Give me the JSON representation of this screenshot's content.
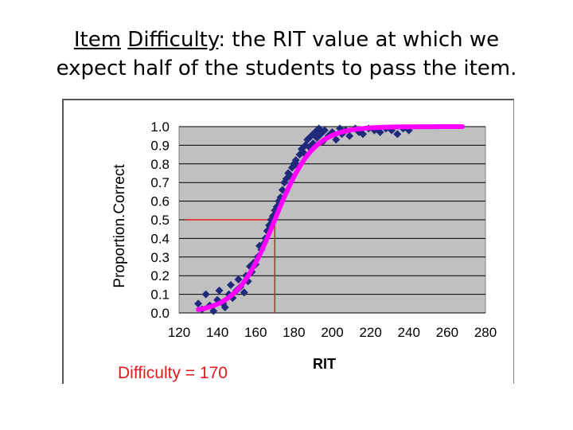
{
  "slide": {
    "title_part1": "Item",
    "title_part2": "Difficulty",
    "title_rest_line1": ": the RIT value at which we",
    "title_line2": "expect half of the students to pass the item."
  },
  "chart_data": {
    "type": "scatter",
    "xlabel": "RIT",
    "ylabel": "Proportion.Correct",
    "xlim": [
      120,
      280
    ],
    "ylim": [
      0.0,
      1.0
    ],
    "x_ticks": [
      "120",
      "140",
      "160",
      "180",
      "200",
      "220",
      "240",
      "260",
      "280"
    ],
    "y_ticks": [
      "0.0",
      "0.1",
      "0.2",
      "0.3",
      "0.4",
      "0.5",
      "0.6",
      "0.7",
      "0.8",
      "0.9",
      "1.0"
    ],
    "grid": "horizontal",
    "background_color": "#c0c0c0",
    "series": [
      {
        "type": "scatter",
        "marker": "diamond",
        "color": "#1f2a7a",
        "points": [
          [
            130,
            0.05
          ],
          [
            132,
            0.02
          ],
          [
            134,
            0.1
          ],
          [
            136,
            0.04
          ],
          [
            138,
            0.01
          ],
          [
            140,
            0.07
          ],
          [
            141,
            0.12
          ],
          [
            143,
            0.05
          ],
          [
            144,
            0.03
          ],
          [
            146,
            0.1
          ],
          [
            147,
            0.15
          ],
          [
            148,
            0.08
          ],
          [
            150,
            0.12
          ],
          [
            151,
            0.18
          ],
          [
            152,
            0.14
          ],
          [
            154,
            0.11
          ],
          [
            155,
            0.2
          ],
          [
            156,
            0.17
          ],
          [
            157,
            0.25
          ],
          [
            158,
            0.22
          ],
          [
            159,
            0.27
          ],
          [
            160,
            0.26
          ],
          [
            161,
            0.3
          ],
          [
            162,
            0.36
          ],
          [
            163,
            0.34
          ],
          [
            164,
            0.37
          ],
          [
            165,
            0.4
          ],
          [
            166,
            0.44
          ],
          [
            167,
            0.47
          ],
          [
            168,
            0.5
          ],
          [
            169,
            0.52
          ],
          [
            170,
            0.55
          ],
          [
            171,
            0.57
          ],
          [
            172,
            0.6
          ],
          [
            173,
            0.62
          ],
          [
            174,
            0.66
          ],
          [
            175,
            0.7
          ],
          [
            176,
            0.72
          ],
          [
            177,
            0.75
          ],
          [
            178,
            0.74
          ],
          [
            179,
            0.78
          ],
          [
            180,
            0.8
          ],
          [
            181,
            0.82
          ],
          [
            182,
            0.79
          ],
          [
            183,
            0.85
          ],
          [
            184,
            0.88
          ],
          [
            185,
            0.86
          ],
          [
            186,
            0.9
          ],
          [
            187,
            0.93
          ],
          [
            188,
            0.89
          ],
          [
            189,
            0.95
          ],
          [
            190,
            0.91
          ],
          [
            191,
            0.97
          ],
          [
            192,
            0.94
          ],
          [
            193,
            0.99
          ],
          [
            194,
            0.96
          ],
          [
            195,
            0.92
          ],
          [
            196,
            0.98
          ],
          [
            198,
            0.95
          ],
          [
            200,
            0.97
          ],
          [
            202,
            0.93
          ],
          [
            204,
            0.99
          ],
          [
            205,
            0.96
          ],
          [
            207,
            0.98
          ],
          [
            209,
            0.95
          ],
          [
            212,
            0.99
          ],
          [
            214,
            0.97
          ],
          [
            216,
            0.96
          ],
          [
            219,
            0.99
          ],
          [
            222,
            0.98
          ],
          [
            225,
            0.97
          ],
          [
            228,
            0.99
          ],
          [
            231,
            0.98
          ],
          [
            234,
            0.96
          ],
          [
            237,
            0.99
          ],
          [
            240,
            0.98
          ]
        ]
      },
      {
        "type": "line",
        "color": "#ff00ff",
        "model": "logistic",
        "difficulty": 170,
        "scale": 10,
        "x_range": [
          130,
          268
        ]
      }
    ],
    "reference_lines": {
      "x": 170,
      "y": 0.5,
      "color": "#e31a1c"
    },
    "annotation": "Difficulty = 170"
  }
}
